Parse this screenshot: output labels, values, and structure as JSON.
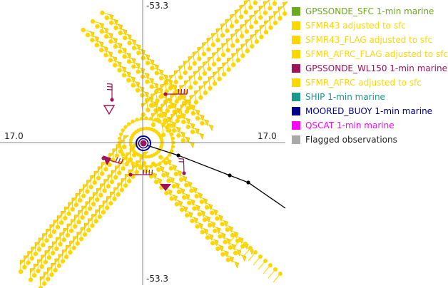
{
  "map": {
    "axis_labels": {
      "top": "-53.3",
      "bottom": "-53.3",
      "left": "17.0",
      "right": "17.0"
    },
    "center_marker": "circle-target-icon",
    "track_marker": "storm-track-line"
  },
  "legend": {
    "items": [
      {
        "label": "GPSSONDE_SFC 1-min marine",
        "color": "#6aaa1e"
      },
      {
        "label": "SFMR43 adjusted to sfc",
        "color": "#ffd700"
      },
      {
        "label": "SFMR43_FLAG adjusted to sfc",
        "color": "#ffd700"
      },
      {
        "label": "SFMR_AFRC_FLAG adjusted to sfc",
        "color": "#ffd700"
      },
      {
        "label": "GPSSONDE_WL150 1-min marine",
        "color": "#a0125a"
      },
      {
        "label": "SFMR_AFRC adjusted to sfc",
        "color": "#ffd700"
      },
      {
        "label": "SHIP 1-min marine",
        "color": "#1a9a8a"
      },
      {
        "label": "MOORED_BUOY 1-min marine",
        "color": "#00008b"
      },
      {
        "label": "QSCAT 1-min marine",
        "color": "#ff00ff"
      },
      {
        "label": "Flagged observations",
        "color": "#a9a9a9"
      }
    ]
  },
  "colors": {
    "sfmr": "#ffd700",
    "sfmr_outline": "#e0b800",
    "dropsonde": "#a0125a",
    "buoy": "#00008b",
    "axis": "#888888",
    "track": "#000000"
  }
}
